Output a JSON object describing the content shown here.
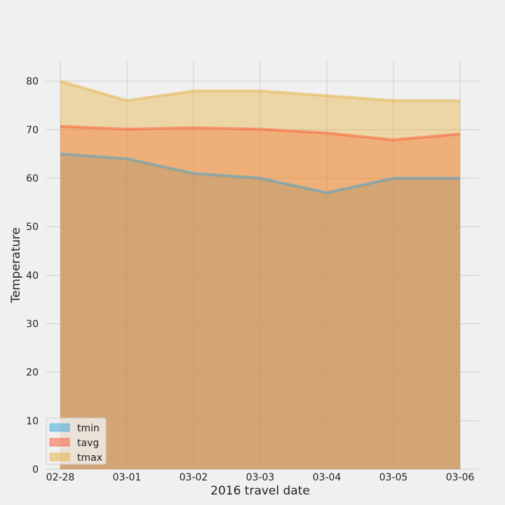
{
  "chart_data": {
    "type": "area",
    "title": "",
    "xlabel": "2016 travel date",
    "ylabel": "Temperature",
    "categories": [
      "02-28",
      "03-01",
      "03-02",
      "03-03",
      "03-04",
      "03-05",
      "03-06"
    ],
    "ylim": [
      0,
      84
    ],
    "yticks": [
      0,
      10,
      20,
      30,
      40,
      50,
      60,
      70,
      80
    ],
    "grid": true,
    "stacked": false,
    "legend_position": "lower-left",
    "series": [
      {
        "name": "tmin",
        "color": "#30a2da",
        "values": [
          65,
          64,
          61,
          60,
          57,
          60,
          60
        ]
      },
      {
        "name": "tavg",
        "color": "#fc4f30",
        "values": [
          70.7,
          70.1,
          70.4,
          70.1,
          69.3,
          67.9,
          69.1
        ]
      },
      {
        "name": "tmax",
        "color": "#e5ae38",
        "values": [
          80,
          76,
          78,
          78,
          77,
          76,
          76
        ]
      }
    ]
  }
}
